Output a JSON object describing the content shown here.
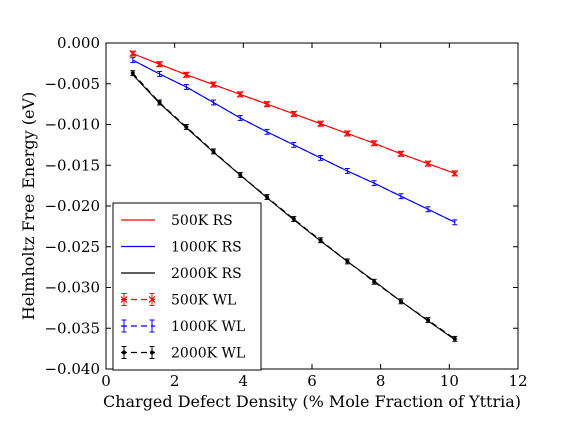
{
  "chart_data": {
    "type": "line",
    "xlabel": "Charged Defect Density (% Mole Fraction of Yttria)",
    "ylabel": "Helmholtz Free Energy (eV)",
    "xlim": [
      0,
      12
    ],
    "ylim": [
      -0.04,
      0.0
    ],
    "x_ticks": [
      0,
      2,
      4,
      6,
      8,
      10,
      12
    ],
    "x_tick_labels": [
      "0",
      "2",
      "4",
      "6",
      "8",
      "10",
      "12"
    ],
    "y_ticks": [
      0.0,
      -0.005,
      -0.01,
      -0.015,
      -0.02,
      -0.025,
      -0.03,
      -0.035,
      -0.04
    ],
    "y_tick_labels": [
      "0.000",
      "−0.005",
      "−0.010",
      "−0.015",
      "−0.020",
      "−0.025",
      "−0.030",
      "−0.035",
      "−0.040"
    ],
    "grid": false,
    "legend_position": "lower-left",
    "series": [
      {
        "name": "500K RS",
        "style": "solid",
        "color": "#ff0000",
        "x": [
          0.78,
          1.56,
          2.34,
          3.13,
          3.91,
          4.69,
          5.47,
          6.25,
          7.03,
          7.81,
          8.59,
          9.38,
          10.16
        ],
        "y": [
          -0.0013,
          -0.0026,
          -0.0039,
          -0.0051,
          -0.0063,
          -0.0075,
          -0.0087,
          -0.0099,
          -0.0111,
          -0.0123,
          -0.0136,
          -0.0148,
          -0.016
        ]
      },
      {
        "name": "1000K RS",
        "style": "solid",
        "color": "#0000ff",
        "x": [
          0.78,
          1.56,
          2.34,
          3.13,
          3.91,
          4.69,
          5.47,
          6.25,
          7.03,
          7.81,
          8.59,
          9.38,
          10.16
        ],
        "y": [
          -0.0021,
          -0.0038,
          -0.0054,
          -0.0073,
          -0.0092,
          -0.0109,
          -0.0125,
          -0.0141,
          -0.0157,
          -0.0172,
          -0.0188,
          -0.0204,
          -0.022
        ]
      },
      {
        "name": "2000K RS",
        "style": "solid",
        "color": "#000000",
        "x": [
          0.78,
          1.56,
          2.34,
          3.13,
          3.91,
          4.69,
          5.47,
          6.25,
          7.03,
          7.81,
          8.59,
          9.38,
          10.16
        ],
        "y": [
          -0.0039,
          -0.0074,
          -0.0104,
          -0.0134,
          -0.0162,
          -0.019,
          -0.0217,
          -0.0243,
          -0.0268,
          -0.0292,
          -0.0317,
          -0.0341,
          -0.0364
        ]
      },
      {
        "name": "500K WL",
        "style": "dashed-errorbar",
        "marker": "x",
        "color": "#ff0000",
        "x": [
          0.78,
          1.56,
          2.34,
          3.13,
          3.91,
          4.69,
          5.47,
          6.25,
          7.03,
          7.81,
          8.59,
          9.38,
          10.16
        ],
        "y": [
          -0.0013,
          -0.0026,
          -0.0039,
          -0.0051,
          -0.0063,
          -0.0075,
          -0.0087,
          -0.0099,
          -0.0111,
          -0.0123,
          -0.0136,
          -0.0148,
          -0.016
        ],
        "yerr": 0.0003
      },
      {
        "name": "1000K WL",
        "style": "dashed-errorbar",
        "marker": "|",
        "color": "#0000ff",
        "x": [
          0.78,
          1.56,
          2.34,
          3.13,
          3.91,
          4.69,
          5.47,
          6.25,
          7.03,
          7.81,
          8.59,
          9.38,
          10.16
        ],
        "y": [
          -0.0021,
          -0.0038,
          -0.0054,
          -0.0073,
          -0.0092,
          -0.0109,
          -0.0125,
          -0.0141,
          -0.0157,
          -0.0172,
          -0.0188,
          -0.0204,
          -0.022
        ],
        "yerr": 0.0003
      },
      {
        "name": "2000K WL",
        "style": "dashed-errorbar",
        "marker": "dot",
        "color": "#000000",
        "x": [
          0.78,
          1.56,
          2.34,
          3.13,
          3.91,
          4.69,
          5.47,
          6.25,
          7.03,
          7.81,
          8.59,
          9.38,
          10.16
        ],
        "y": [
          -0.0037,
          -0.0073,
          -0.0103,
          -0.0133,
          -0.0162,
          -0.0189,
          -0.0216,
          -0.0242,
          -0.0268,
          -0.0293,
          -0.0317,
          -0.034,
          -0.0363
        ],
        "yerr": 0.0003
      }
    ]
  }
}
